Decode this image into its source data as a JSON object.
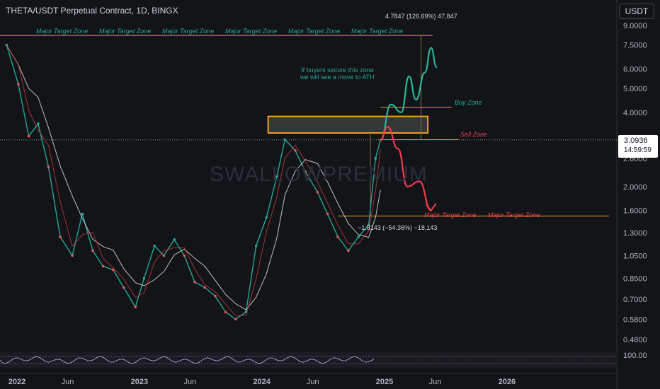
{
  "header": {
    "title": "THETA/USDT Perpetual Contract, 1D, BINGX"
  },
  "currency_button": {
    "label": "USDT"
  },
  "watermark": "SWALLOWPREMIUM",
  "price_badge": {
    "price": "3.0936",
    "countdown": "14:59:59"
  },
  "colors": {
    "background": "#121418",
    "orange": "#f0a020",
    "teal": "#26a69a",
    "red": "#ef3b4e",
    "text": "#d1d4dc"
  },
  "annotations": {
    "major_target_label": "Major Target Zone",
    "buy_zone": "Buy Zone",
    "sell_zone": "Sell Zone",
    "buyers_line1": "If buyers secure this zone",
    "buyers_line2": "we will see a move to ATH",
    "measure_up": "4.7847 (126.69%) 47,847",
    "measure_down": "−1.8143 (−54.36%) −18,143"
  },
  "chart_data": {
    "type": "line",
    "title": "THETA/USDT Perpetual Contract, 1D, BINGX",
    "y_scale": "log",
    "y_ticks": [
      "9.0000",
      "7.5000",
      "6.0000",
      "5.0000",
      "4.0000",
      "3.0936",
      "2.6000",
      "2.0000",
      "1.6000",
      "1.3000",
      "1.0500",
      "0.8500",
      "0.7000",
      "0.5800",
      "0.4800"
    ],
    "x_ticks": [
      "2022",
      "Jun",
      "2023",
      "Jun",
      "2024",
      "Jun",
      "2025",
      "Jun",
      "2026"
    ],
    "oscillator_tick": "100.00",
    "levels": {
      "major_target_top": 8.2,
      "buy_zone": 4.2,
      "sell_zone": 3.1,
      "supply_box": [
        3.3,
        3.85
      ],
      "major_target_bottom": 1.52
    },
    "price_series": {
      "name": "",
      "x": [
        "2021-12-01",
        "2022-01-05",
        "2022-02-05",
        "2022-03-05",
        "2022-04-05",
        "2022-05-10",
        "2022-06-15",
        "2022-07-15",
        "2022-08-15",
        "2022-09-15",
        "2022-10-15",
        "2022-11-15",
        "2022-12-20",
        "2023-01-15",
        "2023-02-15",
        "2023-03-15",
        "2023-04-15",
        "2023-05-15",
        "2023-06-15",
        "2023-07-15",
        "2023-08-15",
        "2023-09-15",
        "2023-10-15",
        "2023-11-15",
        "2023-12-15",
        "2024-01-15",
        "2024-02-15",
        "2024-03-10",
        "2024-04-10",
        "2024-05-10",
        "2024-06-15",
        "2024-07-15",
        "2024-08-15",
        "2024-09-15",
        "2024-10-15",
        "2024-11-15",
        "2024-12-05",
        "2024-12-20"
      ],
      "values": [
        7.5,
        5.2,
        3.2,
        3.6,
        2.4,
        1.25,
        1.05,
        1.55,
        1.1,
        0.95,
        0.92,
        0.78,
        0.65,
        0.85,
        1.15,
        1.05,
        1.22,
        1.05,
        0.82,
        0.78,
        0.72,
        0.62,
        0.58,
        0.62,
        1.15,
        1.5,
        2.2,
        3.1,
        2.8,
        2.3,
        1.9,
        1.55,
        1.25,
        1.1,
        1.25,
        1.4,
        2.6,
        3.09
      ]
    },
    "projection_up": {
      "name": "",
      "x": [
        "2024-12-20",
        "2025-01-20",
        "2025-02-20",
        "2025-03-15",
        "2025-04-05",
        "2025-05-01",
        "2025-05-20",
        "2025-06-05"
      ],
      "values": [
        3.09,
        4.3,
        4.0,
        5.6,
        4.5,
        5.8,
        7.3,
        6.1
      ]
    },
    "projection_down": {
      "name": "",
      "x": [
        "2024-12-20",
        "2025-01-10",
        "2025-02-10",
        "2025-03-10",
        "2025-04-15",
        "2025-05-20"
      ],
      "values": [
        3.09,
        3.5,
        2.85,
        2.0,
        2.1,
        1.6
      ]
    }
  }
}
